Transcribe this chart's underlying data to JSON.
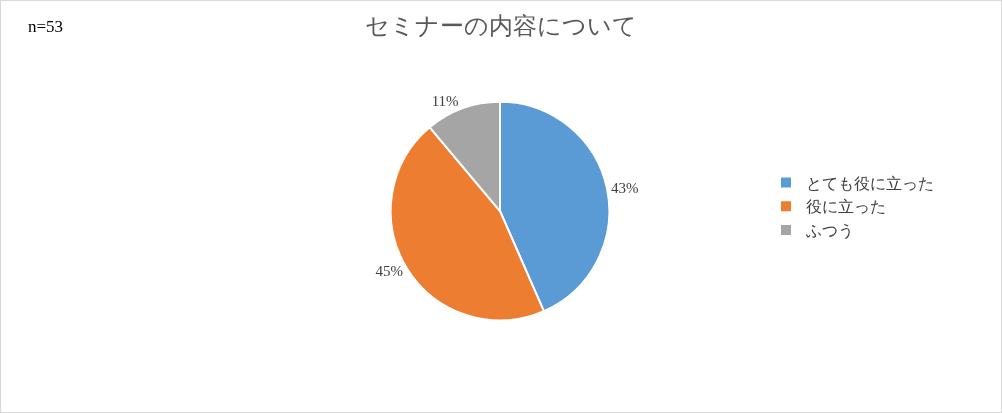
{
  "chart_data": {
    "type": "pie",
    "title": "セミナーの内容について",
    "annotations": [
      "n=53"
    ],
    "categories": [
      "とても役に立った",
      "役に立った",
      "ふつう"
    ],
    "values": [
      43,
      45,
      11
    ],
    "value_labels": [
      "43%",
      "45%",
      "11%"
    ],
    "colors": [
      "#5b9bd5",
      "#ed7d31",
      "#a5a5a5"
    ],
    "legend": "right"
  }
}
